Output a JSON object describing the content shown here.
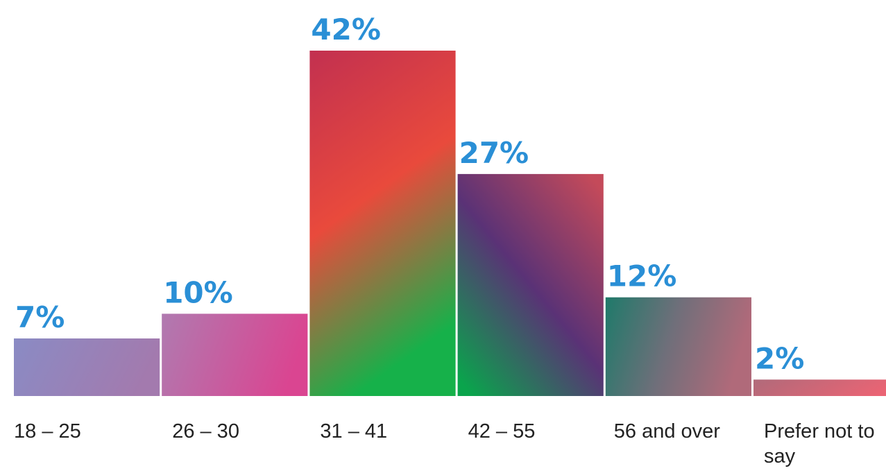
{
  "chart_data": {
    "type": "bar",
    "categories": [
      "18 – 25",
      "26 – 30",
      "31 – 41",
      "42 – 55",
      "56 and over",
      "Prefer not to say"
    ],
    "values": [
      7,
      10,
      42,
      27,
      12,
      2
    ],
    "value_labels": [
      "7%",
      "10%",
      "42%",
      "27%",
      "12%",
      "2%"
    ],
    "title": "",
    "xlabel": "",
    "ylabel": "",
    "ylim": [
      0,
      42
    ],
    "grid": false,
    "legend": "none",
    "colors": {
      "value_label": "#2a8fd6",
      "bar_gradients": [
        [
          "#8a8bc4",
          "#a37aae"
        ],
        [
          "#b07ab0",
          "#da4591"
        ],
        [
          "#c23050",
          "#e94a3c",
          "#16b14a"
        ],
        [
          "#c44a5a",
          "#5a3276",
          "#0aa44c"
        ],
        [
          "#1f7a6a",
          "#6f6f7a",
          "#b06a7a"
        ],
        [
          "#b06a7a",
          "#ea6474"
        ]
      ]
    }
  }
}
